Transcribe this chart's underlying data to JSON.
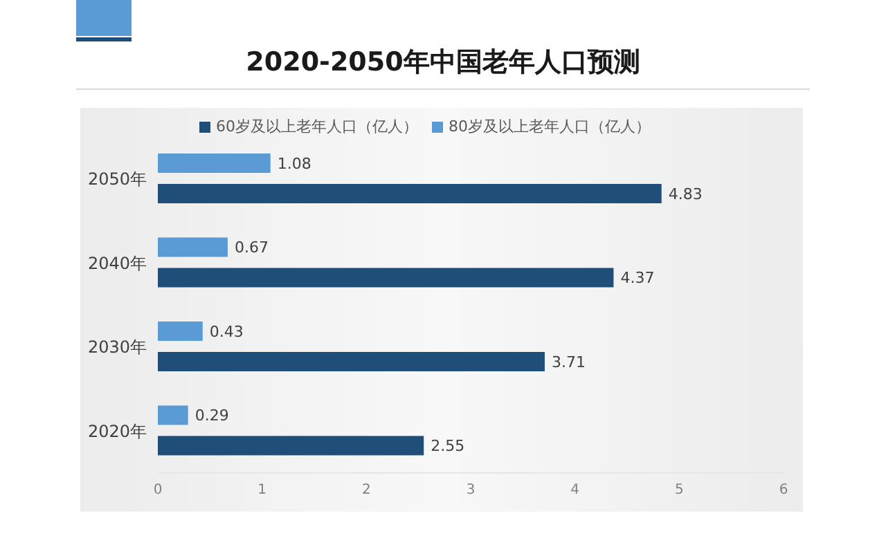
{
  "chart_data": {
    "type": "bar",
    "orientation": "horizontal",
    "title": "2020-2050年中国老年人口预测",
    "categories": [
      "2050年",
      "2040年",
      "2030年",
      "2020年"
    ],
    "series": [
      {
        "name": "80岁及以上老年人口（亿人）",
        "color": "#5b9bd5",
        "values": [
          1.08,
          0.67,
          0.43,
          0.29
        ]
      },
      {
        "name": "60岁及以上老年人口（亿人）",
        "color": "#1f4e79",
        "values": [
          4.83,
          4.37,
          3.71,
          2.55
        ]
      }
    ],
    "xlim": [
      0,
      6
    ],
    "xticks": [
      0,
      1,
      2,
      3,
      4,
      5,
      6
    ],
    "grid": false,
    "legend": "top",
    "data_labels": true
  }
}
